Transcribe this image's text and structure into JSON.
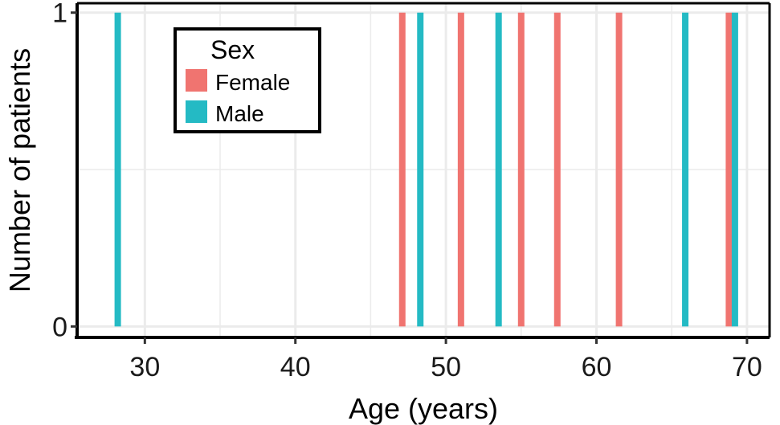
{
  "chart_data": {
    "type": "bar",
    "xlabel": "Age (years)",
    "ylabel": "Number of patients",
    "xlim": [
      25.5,
      71.5
    ],
    "ylim": [
      -0.035,
      1.03
    ],
    "x_ticks": [
      30,
      40,
      50,
      60,
      70
    ],
    "y_ticks": [
      0,
      1
    ],
    "grid": true,
    "legend": {
      "title": "Sex",
      "position": "top-left"
    },
    "series": [
      {
        "name": "Female",
        "color": "#F07470",
        "x": [
          47.1,
          51.0,
          55.0,
          57.4,
          61.5,
          68.8
        ],
        "values": [
          1,
          1,
          1,
          1,
          1,
          1
        ]
      },
      {
        "name": "Male",
        "color": "#24BAC4",
        "x": [
          28.2,
          48.3,
          53.5,
          65.9,
          69.2
        ],
        "values": [
          1,
          1,
          1,
          1,
          1
        ]
      }
    ]
  }
}
